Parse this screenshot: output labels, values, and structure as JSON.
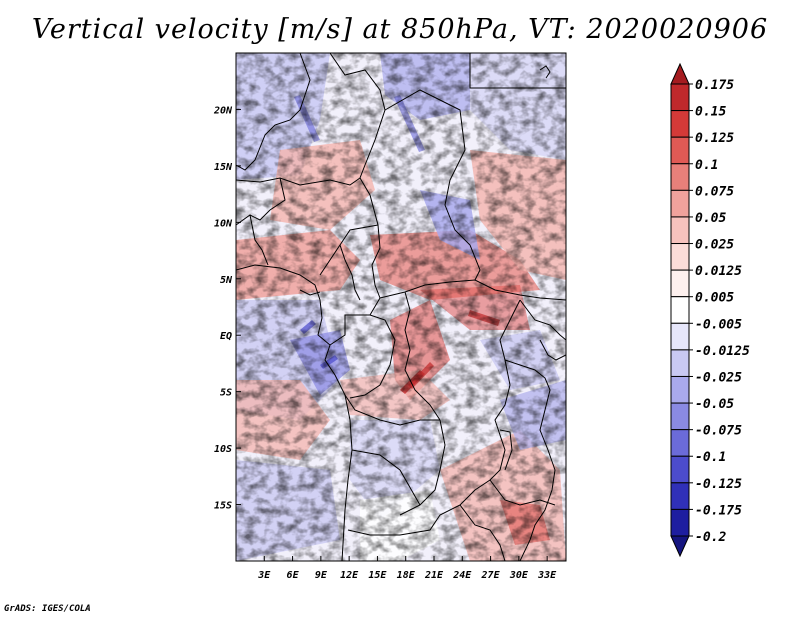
{
  "title": "Vertical velocity [m/s] at 850hPa, VT: 2020020906",
  "credit": "GrADS: IGES/COLA",
  "map": {
    "lon_range": [
      0,
      35
    ],
    "lat_range": [
      -20,
      25
    ],
    "lat_labels": [
      "20N",
      "15N",
      "10N",
      "5N",
      "EQ",
      "5S",
      "10S",
      "15S"
    ],
    "lat_values": [
      20,
      15,
      10,
      5,
      0,
      -5,
      -10,
      -15
    ],
    "lon_labels": [
      "3E",
      "6E",
      "9E",
      "12E",
      "15E",
      "18E",
      "21E",
      "24E",
      "27E",
      "30E",
      "33E"
    ],
    "lon_values": [
      3,
      6,
      9,
      12,
      15,
      18,
      21,
      24,
      27,
      30,
      33
    ]
  },
  "colorbar": {
    "levels": [
      "0.175",
      "0.15",
      "0.125",
      "0.1",
      "0.075",
      "0.05",
      "0.025",
      "0.0125",
      "0.005",
      "-0.005",
      "-0.0125",
      "-0.025",
      "-0.05",
      "-0.075",
      "-0.1",
      "-0.125",
      "-0.175",
      "-0.2"
    ],
    "colors": [
      "#a51c20",
      "#c0292b",
      "#d43a38",
      "#e05a55",
      "#e8807a",
      "#f0a29c",
      "#f7c2bd",
      "#fbdcd8",
      "#fdf0ee",
      "#ffffff",
      "#e6e6fa",
      "#c9c9f3",
      "#a9a9ec",
      "#8a8ae3",
      "#6b6bd9",
      "#4c4ccc",
      "#3030b8",
      "#1e1ea0",
      "#151580"
    ]
  },
  "palette": {
    "strong_up": "#e05a55",
    "weak_up": "#f4b4ae",
    "weak_down": "#c9c9f3",
    "strong_down": "#8080e0"
  }
}
